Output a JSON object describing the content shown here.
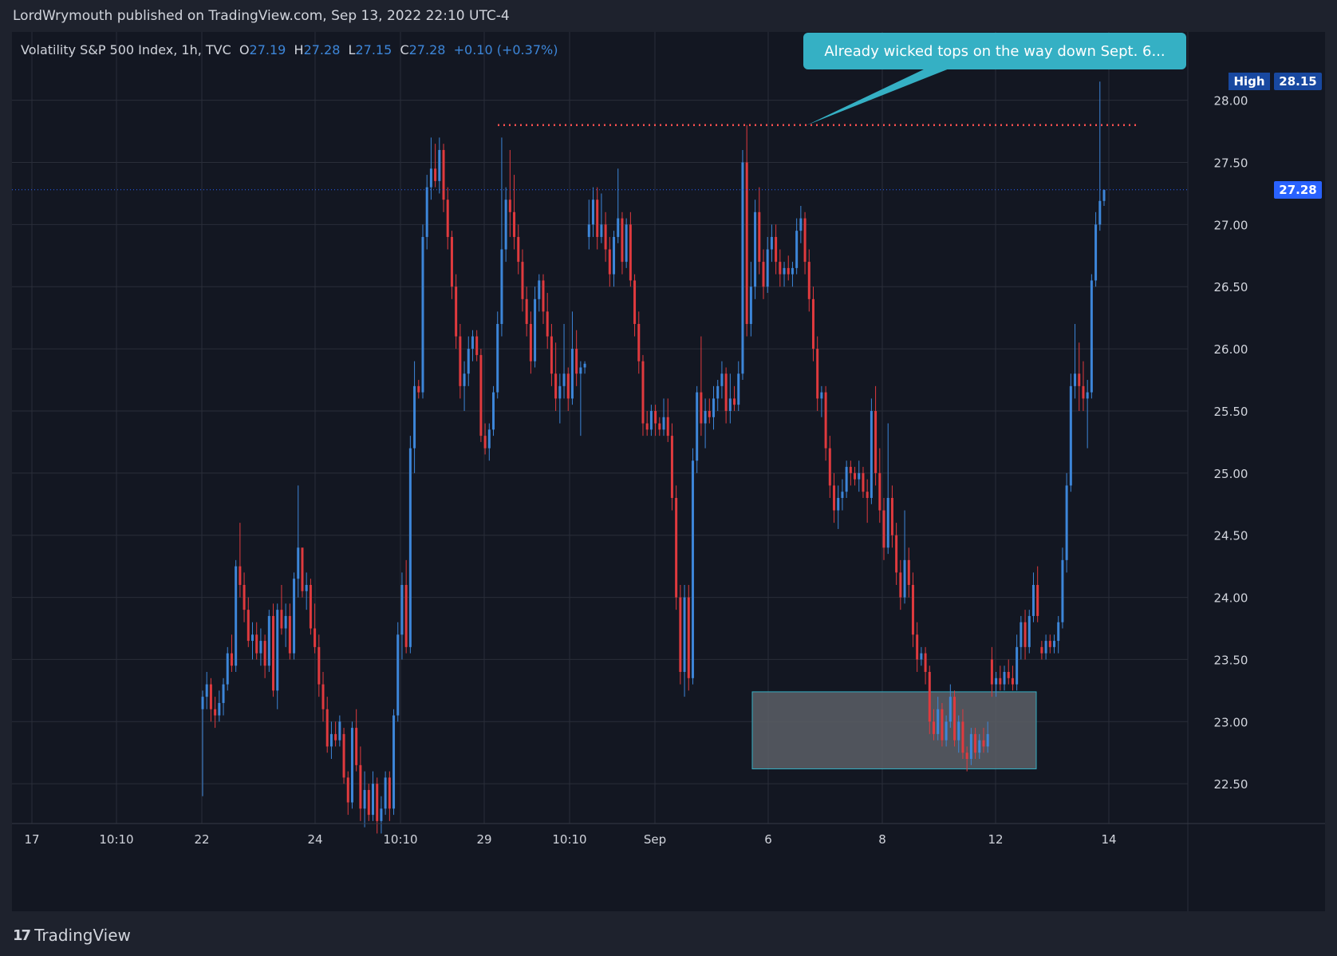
{
  "header": {
    "publisher_line": "LordWrymouth published on TradingView.com, Sep 13, 2022 22:10 UTC-4"
  },
  "legend": {
    "symbol": "Volatility S&P 500 Index, 1h, TVC",
    "o_label": "O",
    "o": "27.19",
    "h_label": "H",
    "h": "27.28",
    "l_label": "L",
    "l": "27.15",
    "c_label": "C",
    "c": "27.28",
    "change": "+0.10 (+0.37%)"
  },
  "callout": {
    "text": "Already wicked tops on the way down Sept. 6..."
  },
  "high_label": "High",
  "footer": {
    "logo_text": "TradingView"
  },
  "colors": {
    "up": "#3d86d9",
    "down": "#e03a3e",
    "grid": "#2a2e39",
    "text": "#d1d4dc",
    "resistance": "#ff4f4f",
    "zone_fill": "#5c5f66",
    "zone_stroke": "#35b0c4",
    "callout": "#35b0c4",
    "last_price": "#2962ff"
  },
  "chart_data": {
    "type": "candlestick",
    "title": "Volatility S&P 500 Index, 1h, TVC",
    "ylim": [
      22.18,
      28.55
    ],
    "y_ticks": [
      "28.00",
      "27.50",
      "27.00",
      "26.50",
      "26.00",
      "25.50",
      "25.00",
      "24.50",
      "24.00",
      "23.50",
      "23.00",
      "22.50"
    ],
    "x_ticks": [
      "17",
      "10:10",
      "22",
      "24",
      "10:10",
      "29",
      "10:10",
      "Sep",
      "6",
      "8",
      "12",
      "14"
    ],
    "last_price": "27.28",
    "high_value": "28.15",
    "resistance_level": 27.8,
    "support_zone": [
      22.62,
      23.24
    ],
    "candles": [
      [
        23.1,
        23.25,
        22.4,
        23.2
      ],
      [
        23.2,
        23.4,
        23.1,
        23.3
      ],
      [
        23.3,
        23.35,
        23.0,
        23.1
      ],
      [
        23.1,
        23.2,
        22.95,
        23.05
      ],
      [
        23.05,
        23.25,
        23.0,
        23.15
      ],
      [
        23.15,
        23.35,
        23.05,
        23.3
      ],
      [
        23.3,
        23.6,
        23.25,
        23.55
      ],
      [
        23.55,
        23.7,
        23.4,
        23.45
      ],
      [
        23.45,
        24.3,
        23.4,
        24.25
      ],
      [
        24.25,
        24.6,
        24.0,
        24.1
      ],
      [
        24.1,
        24.2,
        23.8,
        23.9
      ],
      [
        23.9,
        24.0,
        23.6,
        23.65
      ],
      [
        23.65,
        23.8,
        23.5,
        23.7
      ],
      [
        23.7,
        23.8,
        23.5,
        23.55
      ],
      [
        23.55,
        23.75,
        23.45,
        23.65
      ],
      [
        23.65,
        23.7,
        23.35,
        23.45
      ],
      [
        23.45,
        23.9,
        23.4,
        23.85
      ],
      [
        23.85,
        23.95,
        23.2,
        23.25
      ],
      [
        23.25,
        23.95,
        23.1,
        23.9
      ],
      [
        23.9,
        24.1,
        23.7,
        23.75
      ],
      [
        23.75,
        23.95,
        23.6,
        23.85
      ],
      [
        23.85,
        23.95,
        23.5,
        23.55
      ],
      [
        23.55,
        24.2,
        23.5,
        24.15
      ],
      [
        24.15,
        24.9,
        24.0,
        24.4
      ],
      [
        24.4,
        24.4,
        24.0,
        24.05
      ],
      [
        24.05,
        24.2,
        23.9,
        24.1
      ],
      [
        24.1,
        24.15,
        23.7,
        23.75
      ],
      [
        23.75,
        23.95,
        23.55,
        23.6
      ],
      [
        23.6,
        23.7,
        23.2,
        23.3
      ],
      [
        23.3,
        23.4,
        23.0,
        23.1
      ],
      [
        23.1,
        23.2,
        22.75,
        22.8
      ],
      [
        22.8,
        23.0,
        22.7,
        22.9
      ],
      [
        22.9,
        23.0,
        22.8,
        22.85
      ],
      [
        22.85,
        23.05,
        22.8,
        23.0
      ],
      [
        22.9,
        22.95,
        22.5,
        22.55
      ],
      [
        22.55,
        22.6,
        22.25,
        22.35
      ],
      [
        22.35,
        23.0,
        22.3,
        22.95
      ],
      [
        22.95,
        23.1,
        22.6,
        22.65
      ],
      [
        22.65,
        22.8,
        22.2,
        22.3
      ],
      [
        22.3,
        22.6,
        22.15,
        22.45
      ],
      [
        22.45,
        22.5,
        22.2,
        22.25
      ],
      [
        22.25,
        22.6,
        22.2,
        22.5
      ],
      [
        22.5,
        22.55,
        22.1,
        22.2
      ],
      [
        22.2,
        22.4,
        22.1,
        22.3
      ],
      [
        22.3,
        22.6,
        22.25,
        22.55
      ],
      [
        22.55,
        22.6,
        22.2,
        22.3
      ],
      [
        22.3,
        23.1,
        22.25,
        23.05
      ],
      [
        23.05,
        23.8,
        23.0,
        23.7
      ],
      [
        23.7,
        24.2,
        23.5,
        24.1
      ],
      [
        24.1,
        24.3,
        23.55,
        23.6
      ],
      [
        23.6,
        25.3,
        23.55,
        25.2
      ],
      [
        25.2,
        25.9,
        25.0,
        25.7
      ],
      [
        25.7,
        25.75,
        25.6,
        25.65
      ],
      [
        25.65,
        27.0,
        25.6,
        26.9
      ],
      [
        26.9,
        27.4,
        26.8,
        27.3
      ],
      [
        27.3,
        27.7,
        27.2,
        27.45
      ],
      [
        27.45,
        27.65,
        27.3,
        27.35
      ],
      [
        27.35,
        27.7,
        27.25,
        27.6
      ],
      [
        27.6,
        27.65,
        27.1,
        27.2
      ],
      [
        27.2,
        27.3,
        26.8,
        26.9
      ],
      [
        26.9,
        26.95,
        26.4,
        26.5
      ],
      [
        26.5,
        26.6,
        26.0,
        26.1
      ],
      [
        26.1,
        26.2,
        25.6,
        25.7
      ],
      [
        25.7,
        25.9,
        25.5,
        25.8
      ],
      [
        25.8,
        26.1,
        25.7,
        26.0
      ],
      [
        26.0,
        26.15,
        25.9,
        26.1
      ],
      [
        26.1,
        26.15,
        25.9,
        25.95
      ],
      [
        25.95,
        26.0,
        25.25,
        25.3
      ],
      [
        25.3,
        25.4,
        25.15,
        25.2
      ],
      [
        25.2,
        25.4,
        25.1,
        25.35
      ],
      [
        25.35,
        25.7,
        25.3,
        25.65
      ],
      [
        25.65,
        26.3,
        25.6,
        26.2
      ],
      [
        26.2,
        27.7,
        26.1,
        26.8
      ],
      [
        26.8,
        27.3,
        26.7,
        27.2
      ],
      [
        27.2,
        27.6,
        26.9,
        27.1
      ],
      [
        27.1,
        27.4,
        26.8,
        26.9
      ],
      [
        26.9,
        27.0,
        26.6,
        26.7
      ],
      [
        26.7,
        26.8,
        26.3,
        26.4
      ],
      [
        26.4,
        26.5,
        26.1,
        26.2
      ],
      [
        26.2,
        26.3,
        25.8,
        25.9
      ],
      [
        25.9,
        26.5,
        25.85,
        26.4
      ],
      [
        26.4,
        26.6,
        26.3,
        26.55
      ],
      [
        26.55,
        26.6,
        26.2,
        26.3
      ],
      [
        26.3,
        26.45,
        26.0,
        26.1
      ],
      [
        26.1,
        26.2,
        25.7,
        25.8
      ],
      [
        25.8,
        26.05,
        25.5,
        25.6
      ],
      [
        25.6,
        25.8,
        25.4,
        25.7
      ],
      [
        25.7,
        26.2,
        25.6,
        25.8
      ],
      [
        25.8,
        25.85,
        25.5,
        25.6
      ],
      [
        25.6,
        26.3,
        25.55,
        26.0
      ],
      [
        26.0,
        26.15,
        25.7,
        25.8
      ],
      [
        25.8,
        25.9,
        25.3,
        25.85
      ],
      [
        25.85,
        25.9,
        25.8,
        25.88
      ],
      [
        26.9,
        27.2,
        26.8,
        27.0
      ],
      [
        27.0,
        27.3,
        26.9,
        27.2
      ],
      [
        27.2,
        27.3,
        26.8,
        26.9
      ],
      [
        26.9,
        27.25,
        26.85,
        27.0
      ],
      [
        27.0,
        27.1,
        26.7,
        26.8
      ],
      [
        26.8,
        26.9,
        26.5,
        26.6
      ],
      [
        26.6,
        26.95,
        26.5,
        26.9
      ],
      [
        26.9,
        27.45,
        26.85,
        27.05
      ],
      [
        27.05,
        27.1,
        26.6,
        26.7
      ],
      [
        26.7,
        27.05,
        26.65,
        27.0
      ],
      [
        27.0,
        27.1,
        26.5,
        26.55
      ],
      [
        26.55,
        26.6,
        26.1,
        26.2
      ],
      [
        26.2,
        26.3,
        25.8,
        25.9
      ],
      [
        25.9,
        25.95,
        25.3,
        25.4
      ],
      [
        25.4,
        25.5,
        25.3,
        25.35
      ],
      [
        25.35,
        25.55,
        25.3,
        25.5
      ],
      [
        25.5,
        25.55,
        25.3,
        25.4
      ],
      [
        25.4,
        25.45,
        25.3,
        25.35
      ],
      [
        25.35,
        25.6,
        25.3,
        25.45
      ],
      [
        25.45,
        25.6,
        25.25,
        25.3
      ],
      [
        25.3,
        25.4,
        24.7,
        24.8
      ],
      [
        24.8,
        24.9,
        23.9,
        24.0
      ],
      [
        24.0,
        24.1,
        23.3,
        23.4
      ],
      [
        23.4,
        24.1,
        23.2,
        24.0
      ],
      [
        24.0,
        24.1,
        23.25,
        23.35
      ],
      [
        23.35,
        25.2,
        23.3,
        25.1
      ],
      [
        25.1,
        25.7,
        25.0,
        25.65
      ],
      [
        25.65,
        26.1,
        25.3,
        25.4
      ],
      [
        25.4,
        25.6,
        25.2,
        25.5
      ],
      [
        25.5,
        25.6,
        25.4,
        25.45
      ],
      [
        25.45,
        25.7,
        25.35,
        25.6
      ],
      [
        25.6,
        25.75,
        25.5,
        25.7
      ],
      [
        25.7,
        25.9,
        25.6,
        25.8
      ],
      [
        25.8,
        25.85,
        25.4,
        25.5
      ],
      [
        25.5,
        25.8,
        25.4,
        25.6
      ],
      [
        25.6,
        25.7,
        25.5,
        25.55
      ],
      [
        25.55,
        25.9,
        25.5,
        25.8
      ],
      [
        25.8,
        27.6,
        25.75,
        27.5
      ],
      [
        27.5,
        27.8,
        26.1,
        26.2
      ],
      [
        26.2,
        26.7,
        26.1,
        26.5
      ],
      [
        26.5,
        27.2,
        26.4,
        27.1
      ],
      [
        27.1,
        27.3,
        26.6,
        26.7
      ],
      [
        26.7,
        26.8,
        26.4,
        26.5
      ],
      [
        26.5,
        26.9,
        26.45,
        26.8
      ],
      [
        26.8,
        27.0,
        26.7,
        26.9
      ],
      [
        26.9,
        27.0,
        26.6,
        26.7
      ],
      [
        26.7,
        26.8,
        26.5,
        26.6
      ],
      [
        26.6,
        26.7,
        26.5,
        26.65
      ],
      [
        26.65,
        26.75,
        26.55,
        26.6
      ],
      [
        26.6,
        26.7,
        26.5,
        26.65
      ],
      [
        26.65,
        27.05,
        26.6,
        26.95
      ],
      [
        26.95,
        27.15,
        26.85,
        27.05
      ],
      [
        27.05,
        27.1,
        26.6,
        26.7
      ],
      [
        26.7,
        26.8,
        26.3,
        26.4
      ],
      [
        26.4,
        26.5,
        25.9,
        26.0
      ],
      [
        26.0,
        26.1,
        25.5,
        25.6
      ],
      [
        25.6,
        25.7,
        25.45,
        25.65
      ],
      [
        25.65,
        25.7,
        25.1,
        25.2
      ],
      [
        25.2,
        25.3,
        24.8,
        24.9
      ],
      [
        24.9,
        25.0,
        24.6,
        24.7
      ],
      [
        24.7,
        24.9,
        24.55,
        24.8
      ],
      [
        24.8,
        24.95,
        24.7,
        24.85
      ],
      [
        24.85,
        25.1,
        24.8,
        25.05
      ],
      [
        25.05,
        25.1,
        24.9,
        25.0
      ],
      [
        25.0,
        25.05,
        24.9,
        24.95
      ],
      [
        24.95,
        25.1,
        24.85,
        25.0
      ],
      [
        25.0,
        25.05,
        24.8,
        24.85
      ],
      [
        24.85,
        24.95,
        24.6,
        24.8
      ],
      [
        24.8,
        25.6,
        24.75,
        25.5
      ],
      [
        25.5,
        25.7,
        24.9,
        25.0
      ],
      [
        25.0,
        25.2,
        24.6,
        24.7
      ],
      [
        24.7,
        24.8,
        24.3,
        24.4
      ],
      [
        24.4,
        25.4,
        24.35,
        24.8
      ],
      [
        24.8,
        24.9,
        24.4,
        24.5
      ],
      [
        24.5,
        24.6,
        24.1,
        24.2
      ],
      [
        24.2,
        24.3,
        23.9,
        24.0
      ],
      [
        24.0,
        24.7,
        23.95,
        24.3
      ],
      [
        24.3,
        24.4,
        24.0,
        24.1
      ],
      [
        24.1,
        24.2,
        23.6,
        23.7
      ],
      [
        23.7,
        23.8,
        23.4,
        23.5
      ],
      [
        23.5,
        23.6,
        23.45,
        23.55
      ],
      [
        23.55,
        23.6,
        23.3,
        23.4
      ],
      [
        23.4,
        23.45,
        22.9,
        23.0
      ],
      [
        23.0,
        23.1,
        22.85,
        22.9
      ],
      [
        22.9,
        23.2,
        22.85,
        23.1
      ],
      [
        23.1,
        23.15,
        22.8,
        22.85
      ],
      [
        22.85,
        23.05,
        22.8,
        23.0
      ],
      [
        23.0,
        23.3,
        22.95,
        23.2
      ],
      [
        23.2,
        23.25,
        22.8,
        22.85
      ],
      [
        22.85,
        23.05,
        22.75,
        23.0
      ],
      [
        23.0,
        23.1,
        22.7,
        22.75
      ],
      [
        22.75,
        22.8,
        22.6,
        22.7
      ],
      [
        22.7,
        22.95,
        22.65,
        22.9
      ],
      [
        22.9,
        22.95,
        22.7,
        22.75
      ],
      [
        22.75,
        22.9,
        22.7,
        22.85
      ],
      [
        22.85,
        22.95,
        22.75,
        22.8
      ],
      [
        22.8,
        23.0,
        22.75,
        22.9
      ],
      [
        23.5,
        23.6,
        23.2,
        23.3
      ],
      [
        23.3,
        23.4,
        23.2,
        23.35
      ],
      [
        23.35,
        23.45,
        23.25,
        23.3
      ],
      [
        23.3,
        23.45,
        23.25,
        23.4
      ],
      [
        23.4,
        23.5,
        23.3,
        23.35
      ],
      [
        23.35,
        23.45,
        23.25,
        23.3
      ],
      [
        23.3,
        23.7,
        23.25,
        23.6
      ],
      [
        23.6,
        23.85,
        23.5,
        23.8
      ],
      [
        23.8,
        23.9,
        23.5,
        23.6
      ],
      [
        23.6,
        23.9,
        23.55,
        23.85
      ],
      [
        23.85,
        24.2,
        23.8,
        24.1
      ],
      [
        24.1,
        24.25,
        23.8,
        23.85
      ],
      [
        23.6,
        23.65,
        23.5,
        23.55
      ],
      [
        23.55,
        23.7,
        23.5,
        23.65
      ],
      [
        23.65,
        23.7,
        23.55,
        23.6
      ],
      [
        23.6,
        23.7,
        23.55,
        23.65
      ],
      [
        23.65,
        23.85,
        23.55,
        23.8
      ],
      [
        23.8,
        24.4,
        23.75,
        24.3
      ],
      [
        24.3,
        25.0,
        24.2,
        24.9
      ],
      [
        24.9,
        25.8,
        24.85,
        25.7
      ],
      [
        25.7,
        26.2,
        25.6,
        25.8
      ],
      [
        25.8,
        26.05,
        25.5,
        25.7
      ],
      [
        25.7,
        25.9,
        25.5,
        25.6
      ],
      [
        25.6,
        25.75,
        25.2,
        25.65
      ],
      [
        25.65,
        26.6,
        25.6,
        26.55
      ],
      [
        26.55,
        27.1,
        26.5,
        27.0
      ],
      [
        27.0,
        28.15,
        26.95,
        27.19
      ],
      [
        27.19,
        27.28,
        27.15,
        27.28
      ]
    ]
  }
}
